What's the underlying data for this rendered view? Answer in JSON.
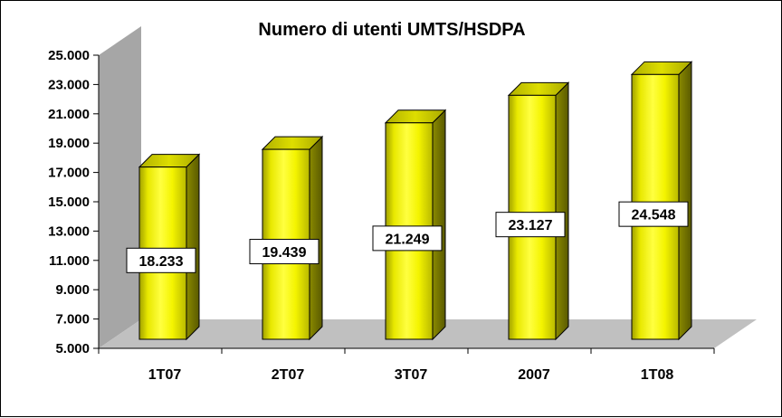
{
  "chart_data": {
    "type": "bar",
    "title": "Numero di utenti UMTS/HSDPA",
    "categories": [
      "1T07",
      "2T07",
      "3T07",
      "2007",
      "1T08"
    ],
    "values": [
      18233,
      19439,
      21249,
      23127,
      24548
    ],
    "value_labels": [
      "18.233",
      "19.439",
      "21.249",
      "23.127",
      "24.548"
    ],
    "ylim": [
      5000,
      25000
    ],
    "yticks": [
      5000,
      7000,
      9000,
      11000,
      13000,
      15000,
      17000,
      19000,
      21000,
      23000,
      25000
    ],
    "ytick_labels": [
      "5.000",
      "7.000",
      "9.000",
      "11.000",
      "13.000",
      "15.000",
      "17.000",
      "19.000",
      "21.000",
      "23.000",
      "25.000"
    ],
    "xlabel": "",
    "ylabel": "",
    "grid": false,
    "legend": "none",
    "style": "3d",
    "colors": {
      "bar_front": "#ffff00",
      "bar_side": "#7f7f00",
      "bar_top": "#cccc00",
      "wall": "#a6a6a6",
      "floor": "#c0c0c0",
      "label_box": "#ffffff"
    }
  }
}
